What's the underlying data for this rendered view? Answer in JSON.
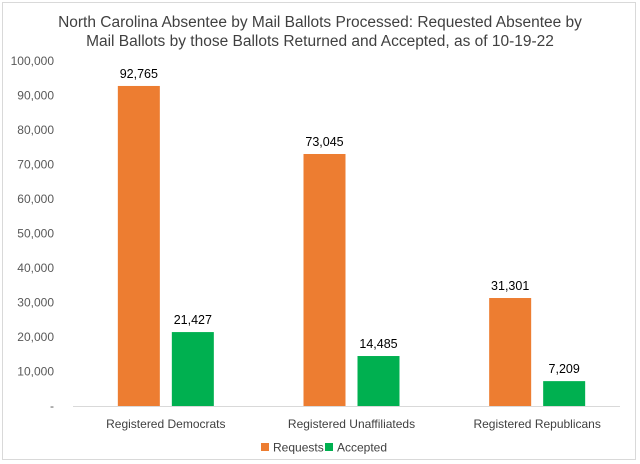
{
  "chart_data": {
    "type": "bar",
    "title_lines": [
      "North Carolina Absentee by Mail Ballots Processed: Requested Absentee by",
      "Mail Ballots by those Ballots Returned and Accepted, as of 10-19-22"
    ],
    "categories": [
      "Registered Democrats",
      "Registered Unaffiliateds",
      "Registered Republicans"
    ],
    "series": [
      {
        "name": "Requests",
        "color": "#ED7D31",
        "values": [
          92765,
          73045,
          31301
        ],
        "labels": [
          "92,765",
          "73,045",
          "31,301"
        ]
      },
      {
        "name": "Accepted",
        "color": "#00B050",
        "values": [
          21427,
          14485,
          7209
        ],
        "labels": [
          "21,427",
          "14,485",
          "7,209"
        ]
      }
    ],
    "ylim": [
      0,
      100000
    ],
    "yticks": [
      0,
      10000,
      20000,
      30000,
      40000,
      50000,
      60000,
      70000,
      80000,
      90000,
      100000
    ],
    "ytick_labels": [
      "-",
      "10,000",
      "20,000",
      "30,000",
      "40,000",
      "50,000",
      "60,000",
      "70,000",
      "80,000",
      "90,000",
      "100,000"
    ],
    "grid": false,
    "legend_position": "bottom",
    "xlabel": "",
    "ylabel": ""
  }
}
